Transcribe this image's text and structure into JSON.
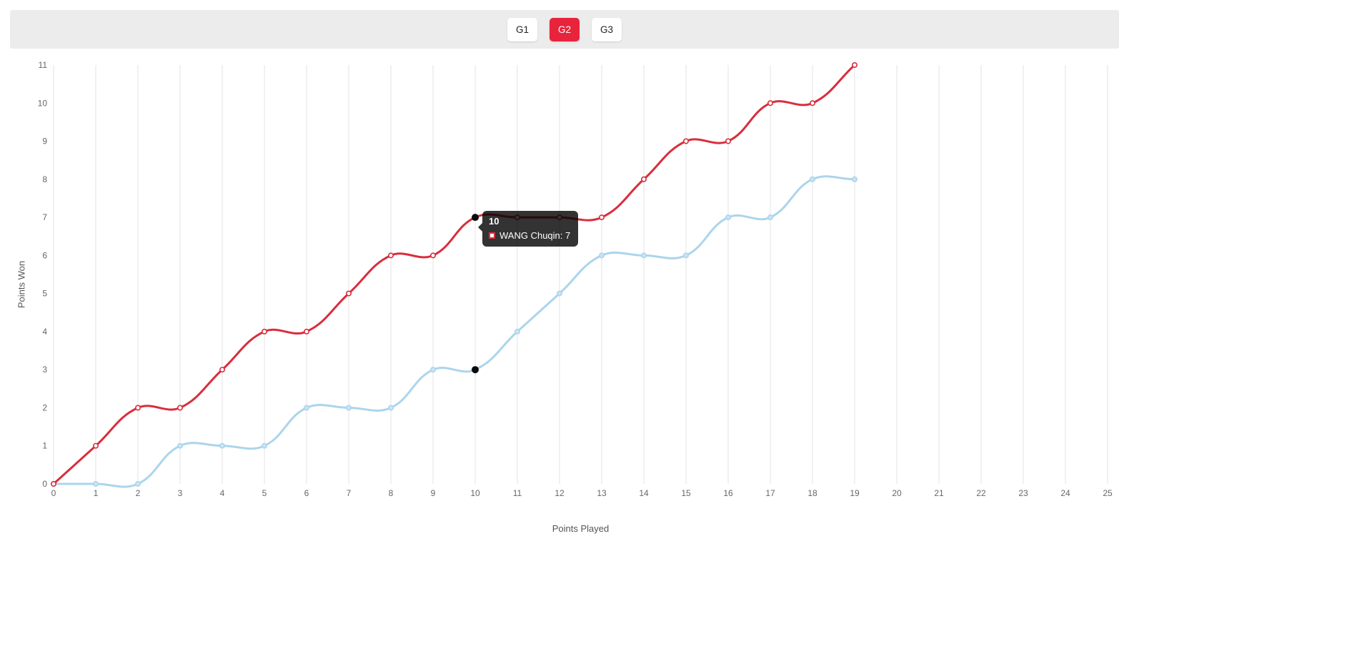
{
  "header": {
    "buttons": [
      {
        "id": "g1",
        "label": "G1",
        "active": false
      },
      {
        "id": "g2",
        "label": "G2",
        "active": true
      },
      {
        "id": "g3",
        "label": "G3",
        "active": false
      }
    ]
  },
  "colors": {
    "accent": "#e8243c",
    "grid": "#e3e3e3",
    "tick": "#666666",
    "hover_dot": "#0a0a0a",
    "tooltip_bg": "rgba(0,0,0,0.8)",
    "bar_background": "#ececec"
  },
  "chart_data": {
    "type": "line",
    "title": "",
    "xlabel": "Points Played",
    "ylabel": "Points Won",
    "xlim": [
      0,
      25
    ],
    "ylim": [
      0,
      11
    ],
    "grid": "vertical-only",
    "legend_position": "none",
    "x_ticks": [
      0,
      1,
      2,
      3,
      4,
      5,
      6,
      7,
      8,
      9,
      10,
      11,
      12,
      13,
      14,
      15,
      16,
      17,
      18,
      19,
      20,
      21,
      22,
      23,
      24,
      25
    ],
    "y_ticks": [
      0,
      1,
      2,
      3,
      4,
      5,
      6,
      7,
      8,
      9,
      10,
      11
    ],
    "x": [
      0,
      1,
      2,
      3,
      4,
      5,
      6,
      7,
      8,
      9,
      10,
      11,
      12,
      13,
      14,
      15,
      16,
      17,
      18,
      19
    ],
    "series": [
      {
        "name": "WANG Chuqin",
        "color": "#d92d3d",
        "point_fill": "#ffffff",
        "values": [
          0,
          1,
          2,
          2,
          3,
          4,
          4,
          5,
          6,
          6,
          7,
          7,
          7,
          7,
          8,
          9,
          9,
          10,
          10,
          11
        ]
      },
      {
        "name": "",
        "color": "#abd5ec",
        "point_fill": "#cce4f4",
        "values": [
          0,
          0,
          0,
          1,
          1,
          1,
          2,
          2,
          2,
          3,
          3,
          4,
          5,
          6,
          6,
          6,
          7,
          7,
          8,
          8
        ]
      }
    ],
    "hover": {
      "x": 10,
      "dots": [
        {
          "series": 0,
          "y": 7
        },
        {
          "series": 1,
          "y": 3
        }
      ]
    },
    "tooltip": {
      "title": "10",
      "rows": [
        {
          "text": "WANG Chuqin: 7",
          "swatch_border": "#d92d3d",
          "swatch_fill": "#ffffff"
        }
      ]
    }
  }
}
